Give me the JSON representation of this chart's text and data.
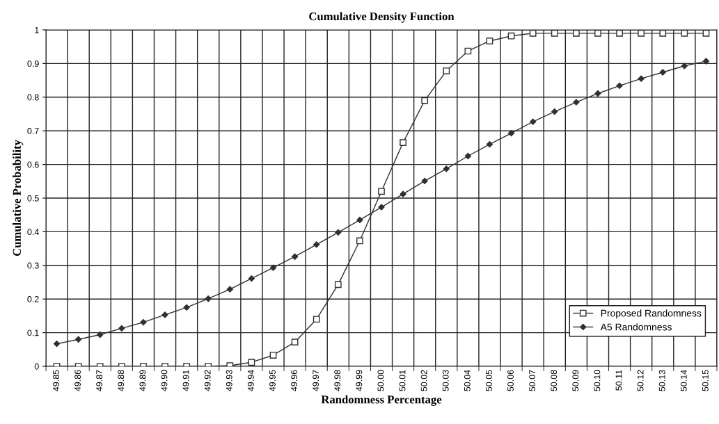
{
  "chart_data": {
    "type": "line",
    "title": "Cumulative Density Function",
    "xlabel": "Randomness Percentage",
    "ylabel": "Cumulative Probability",
    "categories": [
      "49.85",
      "49.86",
      "49.87",
      "49.88",
      "49.89",
      "49.90",
      "49.91",
      "49.92",
      "49.93",
      "49.94",
      "49.95",
      "49.96",
      "49.97",
      "49.98",
      "49.99",
      "50.00",
      "50.01",
      "50.02",
      "50.03",
      "50.04",
      "50.05",
      "50.06",
      "50.07",
      "50.08",
      "50.09",
      "50.10",
      "50.11",
      "50.12",
      "50.13",
      "50.14",
      "50.15"
    ],
    "series": [
      {
        "name": "Proposed Randomness",
        "color": "#303030",
        "marker": "square",
        "values": [
          0,
          0,
          0,
          0,
          0,
          0,
          0,
          0,
          0.002,
          0.012,
          0.033,
          0.072,
          0.14,
          0.243,
          0.373,
          0.52,
          0.665,
          0.79,
          0.878,
          0.937,
          0.967,
          0.982,
          0.99,
          0.99,
          0.99,
          0.99,
          0.99,
          0.99,
          0.99,
          0.99,
          0.99
        ]
      },
      {
        "name": "A5 Randomness",
        "color": "#303030",
        "marker": "diamond",
        "values": [
          0.067,
          0.08,
          0.094,
          0.113,
          0.131,
          0.153,
          0.175,
          0.201,
          0.229,
          0.261,
          0.293,
          0.326,
          0.362,
          0.398,
          0.435,
          0.473,
          0.512,
          0.551,
          0.587,
          0.625,
          0.66,
          0.693,
          0.727,
          0.757,
          0.785,
          0.811,
          0.834,
          0.855,
          0.874,
          0.893,
          0.907
        ]
      }
    ],
    "ylim": [
      0,
      1
    ],
    "yticks": [
      0,
      0.1,
      0.2,
      0.3,
      0.4,
      0.5,
      0.6,
      0.7,
      0.8,
      0.9,
      1
    ],
    "grid": true,
    "legend": "bottom right",
    "line_style": "solid"
  }
}
